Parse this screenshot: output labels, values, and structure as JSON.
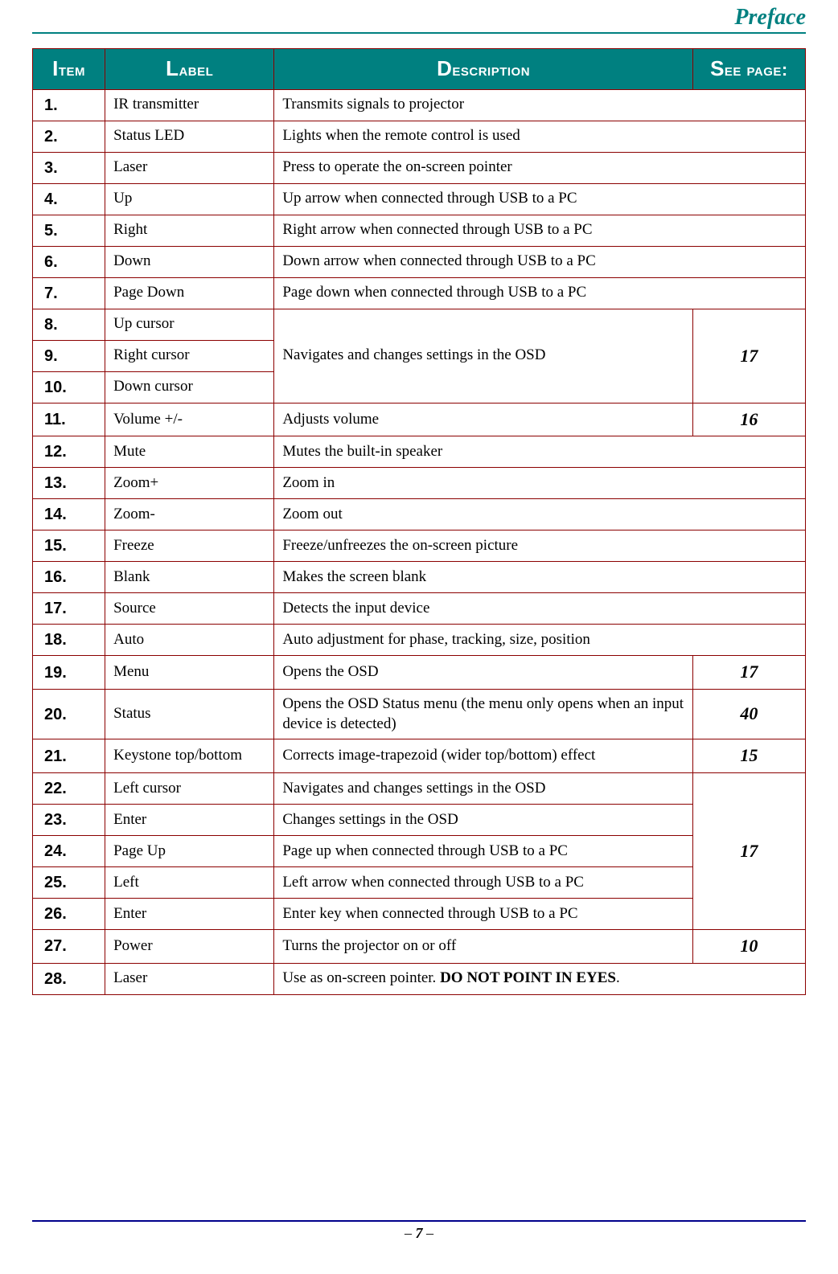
{
  "header": {
    "title": "Preface"
  },
  "footer": {
    "dash_left": "– ",
    "page_number": "7",
    "dash_right": " –"
  },
  "table": {
    "columns": {
      "item": "Item",
      "label": "Label",
      "description": "Description",
      "see_page": "See page:"
    },
    "header_bg": "#008080",
    "border_color": "#8b0000",
    "rows": [
      {
        "item": "1.",
        "label": "IR transmitter",
        "desc": "Transmits signals to projector",
        "desc_colspan": 2
      },
      {
        "item": "2.",
        "label": "Status LED",
        "desc": "Lights when the remote control is used",
        "desc_colspan": 2
      },
      {
        "item": "3.",
        "label": "Laser",
        "desc": "Press to operate the on-screen pointer",
        "desc_colspan": 2
      },
      {
        "item": "4.",
        "label": "Up",
        "desc": "Up arrow when connected through USB to a PC",
        "desc_colspan": 2
      },
      {
        "item": "5.",
        "label": "Right",
        "desc": "Right arrow when connected through USB to a PC",
        "desc_colspan": 2
      },
      {
        "item": "6.",
        "label": "Down",
        "desc": "Down arrow when connected through USB to a PC",
        "desc_colspan": 2
      },
      {
        "item": "7.",
        "label": "Page Down",
        "desc": "Page down when connected through USB to a PC",
        "desc_colspan": 2
      },
      {
        "item": "8.",
        "label": "Up cursor",
        "desc": "Navigates and changes settings in the OSD",
        "desc_rowspan": 3,
        "page": "17",
        "page_rowspan": 3
      },
      {
        "item": "9.",
        "label": "Right cursor"
      },
      {
        "item": "10.",
        "label": "Down cursor"
      },
      {
        "item": "11.",
        "label": "Volume +/-",
        "desc": "Adjusts volume",
        "page": "16"
      },
      {
        "item": "12.",
        "label": "Mute",
        "desc": "Mutes the built-in speaker",
        "desc_colspan": 2
      },
      {
        "item": "13.",
        "label": "Zoom+",
        "desc": "Zoom in",
        "desc_colspan": 2
      },
      {
        "item": "14.",
        "label": "Zoom-",
        "desc": "Zoom out",
        "desc_colspan": 2
      },
      {
        "item": "15.",
        "label": "Freeze",
        "desc": "Freeze/unfreezes the on-screen picture",
        "desc_colspan": 2
      },
      {
        "item": "16.",
        "label": "Blank",
        "desc": "Makes the screen blank",
        "desc_colspan": 2
      },
      {
        "item": "17.",
        "label": "Source",
        "desc": "Detects the input device",
        "desc_colspan": 2
      },
      {
        "item": "18.",
        "label": "Auto",
        "desc": "Auto adjustment for phase, tracking, size, position",
        "desc_colspan": 2
      },
      {
        "item": "19.",
        "label": "Menu",
        "desc": "Opens the OSD",
        "page": "17"
      },
      {
        "item": "20.",
        "label": "Status",
        "desc": "Opens the OSD Status menu (the menu only opens when an input device is detected)",
        "page": "40"
      },
      {
        "item": "21.",
        "label": "Keystone top/bottom",
        "desc": "Corrects image-trapezoid (wider top/bottom) effect",
        "page": "15"
      },
      {
        "item": "22.",
        "label": "Left cursor",
        "desc": "Navigates and changes settings in the OSD",
        "page": "17",
        "page_rowspan": 5
      },
      {
        "item": "23.",
        "label": "Enter",
        "desc": "Changes settings in the OSD"
      },
      {
        "item": "24.",
        "label": "Page Up",
        "desc": "Page up when connected through USB to a PC"
      },
      {
        "item": "25.",
        "label": "Left",
        "desc": "Left arrow when connected through USB to a PC"
      },
      {
        "item": "26.",
        "label": "Enter",
        "desc": "Enter key when connected through USB to a PC"
      },
      {
        "item": "27.",
        "label": "Power",
        "desc": "Turns the projector on or off",
        "page": "10"
      },
      {
        "item": "28.",
        "label": "Laser",
        "desc_prefix": "Use as on-screen pointer. ",
        "desc_bold": "DO NOT POINT IN EYES",
        "desc_suffix": ".",
        "desc_colspan": 2,
        "has_bold": true
      }
    ]
  }
}
